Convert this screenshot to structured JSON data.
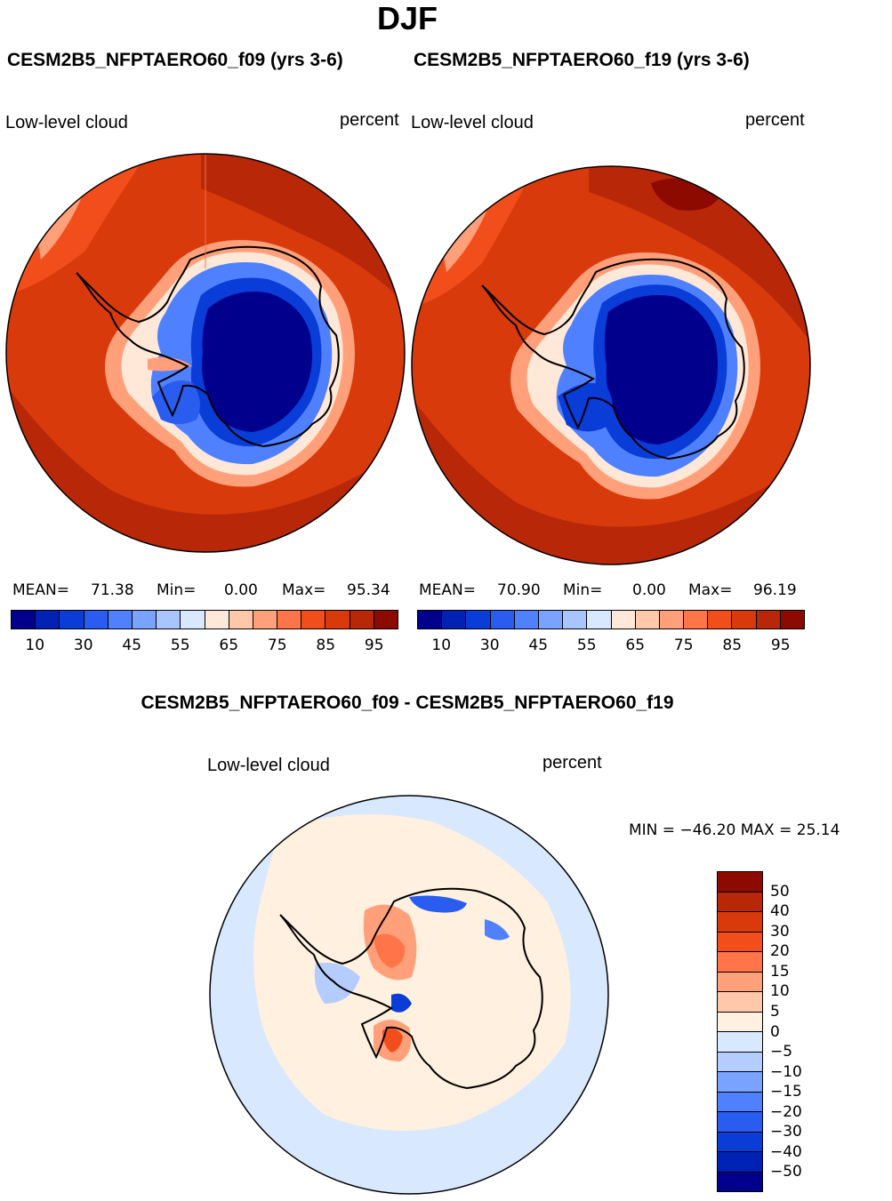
{
  "title": "DJF",
  "panels": [
    {
      "case_title": "CESM2B5_NFPTAERO60_f09 (yrs 3-6)",
      "variable": "Low-level cloud",
      "units": "percent",
      "stats": {
        "mean_label": "MEAN=",
        "mean": "71.38",
        "min_label": "Min=",
        "min": "0.00",
        "max_label": "Max=",
        "max": "95.34"
      }
    },
    {
      "case_title": "CESM2B5_NFPTAERO60_f19 (yrs 3-6)",
      "variable": "Low-level cloud",
      "units": "percent",
      "stats": {
        "mean_label": "MEAN=",
        "mean": "70.90",
        "min_label": "Min=",
        "min": "0.00",
        "max_label": "Max=",
        "max": "96.19"
      }
    }
  ],
  "colorbar": {
    "labels": [
      "10",
      "30",
      "45",
      "55",
      "65",
      "75",
      "85",
      "95"
    ],
    "colors": [
      "#00008c",
      "#0022b4",
      "#0a3cd8",
      "#2a5cf0",
      "#4f80ff",
      "#7aa3ff",
      "#a8c5ff",
      "#d8e8ff",
      "#ffe8d8",
      "#ffc8aa",
      "#ffa07a",
      "#ff7448",
      "#f24e1c",
      "#d93a0c",
      "#b82808",
      "#8c0a00"
    ]
  },
  "diff": {
    "title": "CESM2B5_NFPTAERO60_f09 - CESM2B5_NFPTAERO60_f19",
    "variable": "Low-level cloud",
    "units": "percent",
    "stats_text": "MIN = −46.20  MAX =   25.14",
    "colorbar_labels": [
      "50",
      "40",
      "30",
      "20",
      "15",
      "10",
      "5",
      "0",
      "−5",
      "−10",
      "−15",
      "−20",
      "−30",
      "−40",
      "−50"
    ],
    "colorbar_colors": [
      "#8c0a00",
      "#b82808",
      "#d93a0c",
      "#f24e1c",
      "#ff7448",
      "#ffa07a",
      "#ffc8aa",
      "#fff0e0",
      "#d8e8ff",
      "#b5ccff",
      "#7aa3ff",
      "#4f80ff",
      "#2a5cf0",
      "#0a3cd8",
      "#0022b4",
      "#00008c"
    ]
  }
}
